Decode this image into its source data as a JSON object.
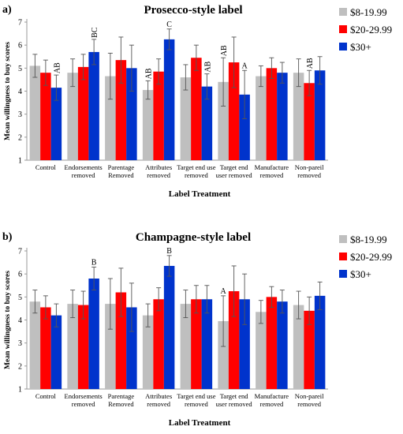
{
  "chart_data": [
    {
      "type": "bar",
      "panel": "a)",
      "title": "Prosecco-style label",
      "xlabel": "Label Treatment",
      "ylabel": "Mean willingness to buy scores",
      "ylim": [
        1,
        7
      ],
      "yticks": [
        1,
        2,
        3,
        4,
        5,
        6,
        7
      ],
      "grid": false,
      "legend_position": "right",
      "categories": [
        [
          "Control"
        ],
        [
          "Endorsements",
          "removed"
        ],
        [
          "Parentage",
          "Removed"
        ],
        [
          "Attributes",
          "removed"
        ],
        [
          "Target end use",
          "removed"
        ],
        [
          "Target end",
          "user removed"
        ],
        [
          "Manufacture",
          "removed"
        ],
        [
          "Non-pareil",
          "removed"
        ]
      ],
      "series": [
        {
          "name": "$8-19.99",
          "color": "#bfbfbf",
          "values": [
            5.1,
            4.8,
            4.65,
            4.05,
            4.6,
            4.4,
            4.65,
            4.8
          ],
          "errors": [
            0.5,
            0.6,
            1.0,
            0.4,
            0.55,
            1.05,
            0.45,
            0.6
          ]
        },
        {
          "name": "$20-29.99",
          "color": "#ff0000",
          "values": [
            4.8,
            5.05,
            5.35,
            4.85,
            5.45,
            5.25,
            5.0,
            4.35
          ],
          "errors": [
            0.55,
            0.55,
            1.0,
            0.55,
            0.55,
            1.1,
            0.45,
            0.55
          ]
        },
        {
          "name": "$30+",
          "color": "#0033cc",
          "values": [
            4.15,
            5.7,
            5.0,
            6.25,
            4.2,
            3.85,
            4.8,
            4.9
          ],
          "errors": [
            0.55,
            0.55,
            1.0,
            0.45,
            0.55,
            1.05,
            0.45,
            0.6
          ]
        }
      ],
      "annotations": [
        {
          "text": "AB",
          "category": 0,
          "series": 2,
          "rotated": true
        },
        {
          "text": "BC",
          "category": 1,
          "series": 2,
          "rotated": true
        },
        {
          "text": "C",
          "category": 3,
          "series": 2,
          "rotated": false
        },
        {
          "text": "AB",
          "category": 3,
          "series": 0,
          "rotated": true
        },
        {
          "text": "AB",
          "category": 4,
          "series": 2,
          "rotated": true
        },
        {
          "text": "AB",
          "category": 5,
          "series": 0,
          "rotated": true
        },
        {
          "text": "A",
          "category": 5,
          "series": 2,
          "rotated": false
        },
        {
          "text": "AB",
          "category": 7,
          "series": 1,
          "rotated": true
        }
      ]
    },
    {
      "type": "bar",
      "panel": "b)",
      "title": "Champagne-style label",
      "xlabel": "Label Treatment",
      "ylabel": "Mean willingness to buy scores",
      "ylim": [
        1,
        7
      ],
      "yticks": [
        1,
        2,
        3,
        4,
        5,
        6,
        7
      ],
      "grid": false,
      "legend_position": "right",
      "categories": [
        [
          "Control"
        ],
        [
          "Endorsements",
          "removed"
        ],
        [
          "Parentage",
          "Removed"
        ],
        [
          "Attributes",
          "removed"
        ],
        [
          "Target end use",
          "removed"
        ],
        [
          "Target end",
          "user removed"
        ],
        [
          "Manufacture",
          "removed"
        ],
        [
          "Non-pareil",
          "removed"
        ]
      ],
      "series": [
        {
          "name": "$8-19.99",
          "color": "#bfbfbf",
          "values": [
            4.8,
            4.7,
            4.7,
            4.2,
            4.7,
            3.95,
            4.35,
            4.65
          ],
          "errors": [
            0.5,
            0.6,
            1.1,
            0.5,
            0.6,
            1.1,
            0.5,
            0.6
          ]
        },
        {
          "name": "$20-29.99",
          "color": "#ff0000",
          "values": [
            4.55,
            4.65,
            5.2,
            4.9,
            4.9,
            5.25,
            5.0,
            4.4
          ],
          "errors": [
            0.5,
            0.6,
            1.05,
            0.5,
            0.6,
            1.1,
            0.45,
            0.6
          ]
        },
        {
          "name": "$30+",
          "color": "#0033cc",
          "values": [
            4.2,
            5.8,
            4.55,
            6.35,
            4.9,
            4.9,
            4.8,
            5.05
          ],
          "errors": [
            0.5,
            0.5,
            1.05,
            0.45,
            0.6,
            1.1,
            0.5,
            0.6
          ]
        }
      ],
      "annotations": [
        {
          "text": "B",
          "category": 1,
          "series": 2,
          "rotated": false
        },
        {
          "text": "B",
          "category": 3,
          "series": 2,
          "rotated": false
        },
        {
          "text": "A",
          "category": 5,
          "series": 0,
          "rotated": false
        }
      ]
    }
  ]
}
